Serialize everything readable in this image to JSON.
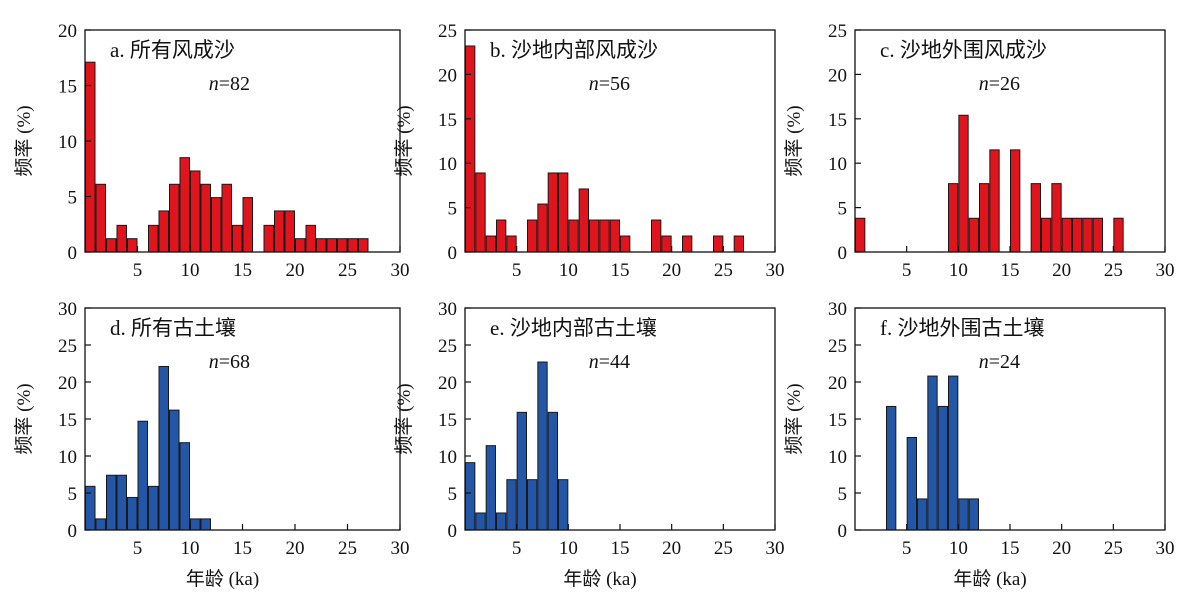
{
  "figure": {
    "xlabel": "年龄 (ka)",
    "ylabel": "频率 (%)"
  },
  "chart_data": [
    {
      "type": "bar",
      "title": "a. 所有风成沙",
      "n_label": "n=82",
      "bar_color": "#e0141c",
      "xlim": [
        0,
        30
      ],
      "ylim": [
        0,
        20
      ],
      "xticks": [
        5,
        10,
        15,
        20,
        25,
        30
      ],
      "yticks": [
        0,
        5,
        10,
        15,
        20
      ],
      "xlabel": "",
      "ylabel": "频率 (%)",
      "x": [
        0.5,
        1.5,
        2.5,
        3.5,
        4.5,
        6.5,
        7.5,
        8.5,
        9.5,
        10.5,
        11.5,
        12.5,
        13.5,
        14.5,
        15.5,
        17.5,
        18.5,
        19.5,
        20.5,
        21.5,
        22.5,
        23.5,
        24.5,
        25.5,
        26.5
      ],
      "values": [
        17.1,
        6.1,
        1.2,
        2.4,
        1.2,
        2.4,
        3.7,
        6.1,
        8.5,
        7.3,
        6.1,
        4.9,
        6.1,
        2.4,
        4.9,
        2.4,
        3.7,
        3.7,
        1.2,
        2.4,
        1.2,
        1.2,
        1.2,
        1.2,
        1.2
      ]
    },
    {
      "type": "bar",
      "title": "b. 沙地内部风成沙",
      "n_label": "n=56",
      "bar_color": "#e0141c",
      "xlim": [
        0,
        30
      ],
      "ylim": [
        0,
        25
      ],
      "xticks": [
        5,
        10,
        15,
        20,
        25,
        30
      ],
      "yticks": [
        0,
        5,
        10,
        15,
        20,
        25
      ],
      "xlabel": "",
      "ylabel": "频率 (%)",
      "x": [
        0.5,
        1.5,
        2.5,
        3.5,
        4.5,
        6.5,
        7.5,
        8.5,
        9.5,
        10.5,
        11.5,
        12.5,
        13.5,
        14.5,
        15.5,
        18.5,
        19.5,
        21.5,
        24.5,
        26.5
      ],
      "values": [
        23.2,
        8.9,
        1.8,
        3.6,
        1.8,
        3.6,
        5.4,
        8.9,
        8.9,
        3.6,
        7.1,
        3.6,
        3.6,
        3.6,
        1.8,
        3.6,
        1.8,
        1.8,
        1.8,
        1.8
      ]
    },
    {
      "type": "bar",
      "title": "c. 沙地外围风成沙",
      "n_label": "n=26",
      "bar_color": "#e0141c",
      "xlim": [
        0,
        30
      ],
      "ylim": [
        0,
        25
      ],
      "xticks": [
        5,
        10,
        15,
        20,
        25,
        30
      ],
      "yticks": [
        0,
        5,
        10,
        15,
        20,
        25
      ],
      "xlabel": "",
      "ylabel": "频率 (%)",
      "x": [
        0.5,
        9.5,
        10.5,
        11.5,
        12.5,
        13.5,
        15.5,
        17.5,
        18.5,
        19.5,
        20.5,
        21.5,
        22.5,
        23.5,
        25.5
      ],
      "values": [
        3.8,
        7.7,
        15.4,
        3.8,
        7.7,
        11.5,
        11.5,
        7.7,
        3.8,
        7.7,
        3.8,
        3.8,
        3.8,
        3.8,
        3.8
      ]
    },
    {
      "type": "bar",
      "title": "d. 所有古土壤",
      "n_label": "n=68",
      "bar_color": "#2356a6",
      "xlim": [
        0,
        30
      ],
      "ylim": [
        0,
        30
      ],
      "xticks": [
        5,
        10,
        15,
        20,
        25,
        30
      ],
      "yticks": [
        0,
        5,
        10,
        15,
        20,
        25,
        30
      ],
      "xlabel": "年龄 (ka)",
      "ylabel": "频率 (%)",
      "x": [
        0.5,
        1.5,
        2.5,
        3.5,
        4.5,
        5.5,
        6.5,
        7.5,
        8.5,
        9.5,
        10.5,
        11.5
      ],
      "values": [
        5.9,
        1.5,
        7.4,
        7.4,
        4.4,
        14.7,
        5.9,
        22.1,
        16.2,
        11.8,
        1.5,
        1.5
      ]
    },
    {
      "type": "bar",
      "title": "e. 沙地内部古土壤",
      "n_label": "n=44",
      "bar_color": "#2356a6",
      "xlim": [
        0,
        30
      ],
      "ylim": [
        0,
        30
      ],
      "xticks": [
        5,
        10,
        15,
        20,
        25,
        30
      ],
      "yticks": [
        0,
        5,
        10,
        15,
        20,
        25,
        30
      ],
      "xlabel": "年龄 (ka)",
      "ylabel": "频率 (%)",
      "x": [
        0.5,
        1.5,
        2.5,
        3.5,
        4.5,
        5.5,
        6.5,
        7.5,
        8.5,
        9.5
      ],
      "values": [
        9.1,
        2.3,
        11.4,
        2.3,
        6.8,
        15.9,
        6.8,
        22.7,
        15.9,
        6.8
      ]
    },
    {
      "type": "bar",
      "title": "f. 沙地外围古土壤",
      "n_label": "n=24",
      "bar_color": "#2356a6",
      "xlim": [
        0,
        30
      ],
      "ylim": [
        0,
        30
      ],
      "xticks": [
        5,
        10,
        15,
        20,
        25,
        30
      ],
      "yticks": [
        0,
        5,
        10,
        15,
        20,
        25,
        30
      ],
      "xlabel": "年龄 (ka)",
      "ylabel": "频率 (%)",
      "x": [
        3.5,
        5.5,
        6.5,
        7.5,
        8.5,
        9.5,
        10.5,
        11.5
      ],
      "values": [
        16.7,
        12.5,
        4.2,
        20.8,
        16.7,
        20.8,
        4.2,
        4.2
      ]
    }
  ]
}
